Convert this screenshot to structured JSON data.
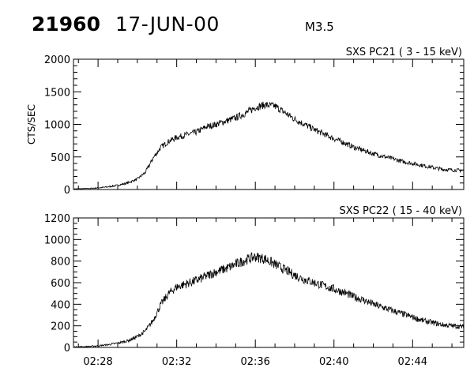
{
  "header": {
    "event_id": "21960",
    "date": "17-JUN-00",
    "flare_class": "M3.5"
  },
  "chart_data": [
    {
      "type": "line",
      "title": "SXS PC21  (  3 - 15 keV)",
      "ylabel": "CTS/SEC",
      "xlabel": "",
      "ylim": [
        0,
        2000
      ],
      "yticks": [
        "0",
        "500",
        "1000",
        "1500",
        "2000"
      ],
      "xlim_minutes": [
        26.75,
        46.6
      ],
      "xticks": [
        "02:28",
        "02:32",
        "02:36",
        "02:40",
        "02:44"
      ],
      "x_time_minutes": [
        26.8,
        27.5,
        28.0,
        28.5,
        29.0,
        29.5,
        30.0,
        30.4,
        30.8,
        31.2,
        31.6,
        32.0,
        32.5,
        33.0,
        33.5,
        34.0,
        34.5,
        35.0,
        35.5,
        36.0,
        36.5,
        37.0,
        37.5,
        38.0,
        38.5,
        39.0,
        39.5,
        40.0,
        40.5,
        41.0,
        41.5,
        42.0,
        42.5,
        43.0,
        43.5,
        44.0,
        44.5,
        45.0,
        45.5,
        46.0,
        46.6
      ],
      "series": [
        {
          "values": [
            10,
            15,
            25,
            40,
            65,
            100,
            160,
            260,
            480,
            650,
            740,
            800,
            840,
            880,
            960,
            1000,
            1050,
            1100,
            1170,
            1260,
            1300,
            1280,
            1180,
            1080,
            1000,
            920,
            850,
            780,
            720,
            650,
            600,
            550,
            510,
            470,
            430,
            400,
            370,
            340,
            310,
            300,
            290
          ]
        }
      ]
    },
    {
      "type": "line",
      "title": "SXS PC22  ( 15 - 40 keV)",
      "ylabel": "",
      "xlabel": "",
      "ylim": [
        0,
        1200
      ],
      "yticks": [
        "0",
        "200",
        "400",
        "600",
        "800",
        "1000",
        "1200"
      ],
      "xlim_minutes": [
        26.75,
        46.6
      ],
      "xticks": [
        "02:28",
        "02:32",
        "02:36",
        "02:40",
        "02:44"
      ],
      "x_time_minutes": [
        26.8,
        27.5,
        28.0,
        28.5,
        29.0,
        29.5,
        30.0,
        30.4,
        30.8,
        31.2,
        31.6,
        32.0,
        32.5,
        33.0,
        33.5,
        34.0,
        34.5,
        35.0,
        35.5,
        36.0,
        36.5,
        37.0,
        37.5,
        38.0,
        38.5,
        39.0,
        39.5,
        40.0,
        40.5,
        41.0,
        41.5,
        42.0,
        42.5,
        43.0,
        43.5,
        44.0,
        44.5,
        45.0,
        45.5,
        46.0,
        46.6
      ],
      "series": [
        {
          "values": [
            5,
            8,
            15,
            25,
            40,
            60,
            100,
            150,
            250,
            400,
            500,
            560,
            590,
            620,
            660,
            700,
            730,
            770,
            810,
            840,
            820,
            770,
            720,
            670,
            630,
            600,
            570,
            540,
            510,
            470,
            440,
            400,
            370,
            340,
            310,
            280,
            250,
            230,
            210,
            200,
            190
          ]
        }
      ]
    }
  ]
}
